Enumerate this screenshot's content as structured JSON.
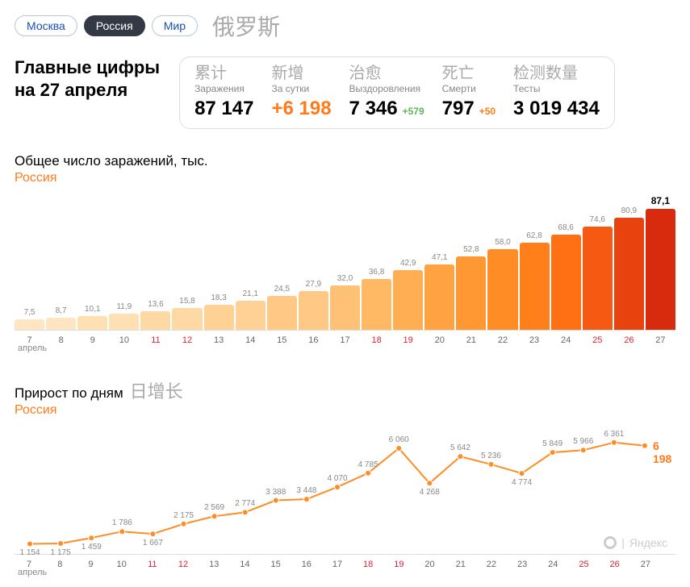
{
  "tabs": {
    "moscow": "Москва",
    "russia": "Россия",
    "world": "Мир",
    "cjk_russia": "俄罗斯"
  },
  "headline": {
    "line1": "Главные цифры",
    "line2": "на 27 апреля"
  },
  "stats": {
    "infected": {
      "cjk": "累计",
      "label": "Заражения",
      "value": "87 147"
    },
    "daily": {
      "cjk": "新增",
      "label": "За сутки",
      "value": "+6 198",
      "color": "#ff7a1a"
    },
    "recovered": {
      "cjk": "治愈",
      "label": "Выздоровления",
      "value": "7 346",
      "delta": "+579",
      "delta_color": "#5bb85b"
    },
    "deaths": {
      "cjk": "死亡",
      "label": "Смерти",
      "value": "797",
      "delta": "+50",
      "delta_color": "#ff7a1a"
    },
    "tests": {
      "cjk": "检测数量",
      "label": "Тесты",
      "value": "3 019 434"
    }
  },
  "bar_chart": {
    "title": "Общее число заражений, тыс.",
    "subtitle": "Россия",
    "ymax": 87.1,
    "month_label": "апрель",
    "days": [
      7,
      8,
      9,
      10,
      11,
      12,
      13,
      14,
      15,
      16,
      17,
      18,
      19,
      20,
      21,
      22,
      23,
      24,
      25,
      26,
      27
    ],
    "weekend_idx": [
      4,
      5,
      11,
      12,
      18,
      19
    ],
    "values": [
      7.5,
      8.7,
      10.1,
      11.9,
      13.6,
      15.8,
      18.3,
      21.1,
      24.5,
      27.9,
      32.0,
      36.8,
      42.9,
      47.1,
      52.8,
      58.0,
      62.8,
      68.6,
      74.6,
      80.9,
      87.1
    ],
    "labels": [
      "7,5",
      "8,7",
      "10,1",
      "11,9",
      "13,6",
      "15,8",
      "18,3",
      "21,1",
      "24,5",
      "27,9",
      "32,0",
      "36,8",
      "42,9",
      "47,1",
      "52,8",
      "58,0",
      "62,8",
      "68,6",
      "74,6",
      "80,9",
      "87,1"
    ],
    "colors": [
      "#ffe6c2",
      "#ffe6c2",
      "#ffe0b3",
      "#ffe0b3",
      "#ffd9a3",
      "#ffd9a3",
      "#ffd194",
      "#ffd194",
      "#ffc985",
      "#ffc985",
      "#ffc175",
      "#ffb863",
      "#ffae52",
      "#ffa342",
      "#ff9833",
      "#ff8c24",
      "#ff7f1a",
      "#ff6f14",
      "#f65a12",
      "#e8430f",
      "#d82a0c"
    ]
  },
  "line_chart": {
    "title": "Прирост по дням",
    "cjk": "日增长",
    "subtitle": "Россия",
    "month_label": "апрель",
    "ymin": 800,
    "ymax": 6600,
    "days": [
      7,
      8,
      9,
      10,
      11,
      12,
      13,
      14,
      15,
      16,
      17,
      18,
      19,
      20,
      21,
      22,
      23,
      24,
      25,
      26,
      27
    ],
    "weekend_idx": [
      4,
      5,
      11,
      12,
      18,
      19
    ],
    "values": [
      1154,
      1175,
      1459,
      1786,
      1667,
      2175,
      2569,
      2774,
      3388,
      3448,
      4070,
      4785,
      6060,
      4268,
      5642,
      5236,
      4774,
      5849,
      5966,
      6361,
      6198
    ],
    "labels": [
      "1 154",
      "1 175",
      "1 459",
      "1 786",
      "1 667",
      "2 175",
      "2 569",
      "2 774",
      "3 388",
      "3 448",
      "4 070",
      "4 785",
      "6 060",
      "4 268",
      "5 642",
      "5 236",
      "4 774",
      "5 849",
      "5 966",
      "6 361",
      "6 198"
    ],
    "label_above": [
      false,
      false,
      false,
      true,
      false,
      true,
      true,
      true,
      true,
      true,
      true,
      true,
      true,
      false,
      true,
      true,
      false,
      true,
      true,
      true,
      true
    ],
    "line_color": "#ff8c24",
    "last_label": "6 198"
  },
  "footer": {
    "brand": "Яндекс"
  }
}
